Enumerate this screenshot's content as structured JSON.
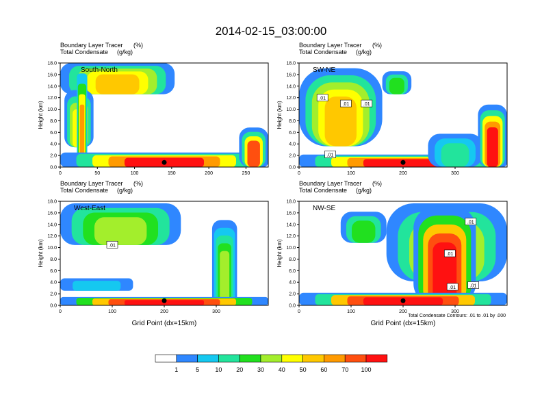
{
  "figure": {
    "title": "2014-02-15_03:00:00",
    "contour_note": "Total Condensate Contours: .01 to .01 by .000",
    "xlabel": "Grid Point (dx=15km)"
  },
  "colorbar": {
    "labels": [
      "1",
      "5",
      "10",
      "20",
      "30",
      "40",
      "50",
      "60",
      "70",
      "100"
    ],
    "colors": [
      "#ffffff",
      "#2f87ff",
      "#15c8f0",
      "#22e49c",
      "#21e01f",
      "#a3ee2c",
      "#ffff00",
      "#ffc800",
      "#ff9a00",
      "#ff4f0f",
      "#ff1111"
    ]
  },
  "chart_data": [
    {
      "type": "heatmap",
      "name": "South-North",
      "title_line1": "Boundary Layer Tracer",
      "title_unit1": "(%)",
      "title_line2": "Total Condensate",
      "title_unit2": "(g/kg)",
      "ylabel": "Height (km)",
      "xlabel": "",
      "xlim": [
        0,
        280
      ],
      "ylim": [
        0,
        18
      ],
      "xticks": [
        0,
        50,
        100,
        150,
        200,
        250
      ],
      "yticks": [
        "0.0",
        "2.0",
        "4.0",
        "6.0",
        "8.0",
        "10.0",
        "12.0",
        "14.0",
        "16.0",
        "18.0"
      ],
      "contour_labels": [],
      "marker_x": 140
    },
    {
      "type": "heatmap",
      "name": "SW-NE",
      "title_line1": "Boundary Layer Tracer",
      "title_unit1": "(%)",
      "title_line2": "Total Condensate",
      "title_unit2": "(g/kg)",
      "ylabel": "Height (km)",
      "xlabel": "",
      "xlim": [
        0,
        400
      ],
      "ylim": [
        0,
        18
      ],
      "xticks": [
        0,
        100,
        200,
        300
      ],
      "yticks": [
        "0.0",
        "2.0",
        "4.0",
        "6.0",
        "8.0",
        "10.0",
        "12.0",
        "14.0",
        "16.0",
        "18.0"
      ],
      "contour_labels": [
        {
          "text": ".01",
          "x": 45,
          "y": 12
        },
        {
          "text": ".01",
          "x": 90,
          "y": 11
        },
        {
          "text": ".01",
          "x": 130,
          "y": 11
        },
        {
          "text": ".01",
          "x": 60,
          "y": 2.2
        }
      ],
      "marker_x": 200
    },
    {
      "type": "heatmap",
      "name": "West-East",
      "title_line1": "Boundary Layer Tracer",
      "title_unit1": "(%)",
      "title_line2": "Total Condensate",
      "title_unit2": "(g/kg)",
      "ylabel": "Height (km)",
      "xlabel": "Grid Point (dx=15km)",
      "xlim": [
        0,
        400
      ],
      "ylim": [
        0,
        18
      ],
      "xticks": [
        0,
        100,
        200,
        300
      ],
      "yticks": [
        "0.0",
        "2.0",
        "4.0",
        "6.0",
        "8.0",
        "10.0",
        "12.0",
        "14.0",
        "16.0",
        "18.0"
      ],
      "contour_labels": [
        {
          "text": ".01",
          "x": 100,
          "y": 10.5
        }
      ],
      "marker_x": 200
    },
    {
      "type": "heatmap",
      "name": "NW-SE",
      "title_line1": "Boundary Layer Tracer",
      "title_unit1": "(%)",
      "title_line2": "Total Condensate",
      "title_unit2": "(g/kg)",
      "ylabel": "Height (km)",
      "xlabel": "Grid Point (dx=15km)",
      "xlim": [
        0,
        400
      ],
      "ylim": [
        0,
        18
      ],
      "xticks": [
        0,
        100,
        200,
        300
      ],
      "yticks": [
        "0.0",
        "2.0",
        "4.0",
        "6.0",
        "8.0",
        "10.0",
        "12.0",
        "14.0",
        "16.0",
        "18.0"
      ],
      "contour_labels": [
        {
          "text": ".01",
          "x": 330,
          "y": 14.5
        },
        {
          "text": ".01",
          "x": 290,
          "y": 9
        },
        {
          "text": ".01",
          "x": 295,
          "y": 3.2
        },
        {
          "text": ".01",
          "x": 335,
          "y": 3.5
        }
      ],
      "marker_x": 200
    }
  ]
}
